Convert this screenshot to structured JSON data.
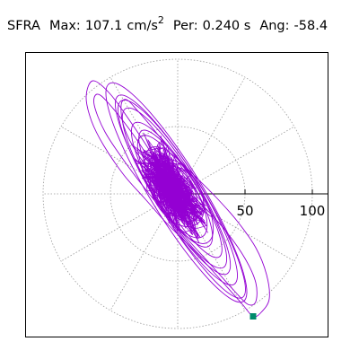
{
  "header": {
    "station": "SFRA",
    "max_label": "Max:",
    "max_value": "107.1",
    "max_unit": "cm/s",
    "max_unit_exp": "2",
    "per_label": "Per:",
    "per_value": "0.240 s",
    "ang_label": "Ang:",
    "ang_value": "-58.4"
  },
  "colors": {
    "trace": "#9400d3",
    "marker": "#008b6b",
    "grid": "#9a9a9a",
    "axis": "#000000"
  },
  "chart_data": {
    "type": "scatter",
    "subtype": "polar-orbit",
    "title": "SFRA Max: 107.1 cm/s2 Per: 0.240 s Ang: -58.4",
    "xlabel": "",
    "ylabel": "",
    "radial_ticks": [
      "50",
      "100"
    ],
    "rings": [
      50,
      100
    ],
    "spokes_deg": [
      0,
      30,
      60,
      90,
      120,
      150,
      180,
      210,
      240,
      270,
      300,
      330
    ],
    "grid": true,
    "max": 107.1,
    "max_angle_deg": -58.4,
    "peak_point": [
      56,
      -91
    ],
    "series": [
      {
        "type": "loop",
        "points": [
          [
            -0.5,
            2
          ],
          [
            -4,
            8
          ],
          [
            -12,
            18
          ],
          [
            -22,
            34
          ],
          [
            -34,
            52
          ],
          [
            -50,
            74
          ],
          [
            -63,
            84
          ],
          [
            -68,
            72
          ],
          [
            -64,
            54
          ],
          [
            -55,
            36
          ],
          [
            -40,
            14
          ],
          [
            -24,
            -4
          ],
          [
            -8,
            -22
          ],
          [
            12,
            -42
          ],
          [
            32,
            -64
          ],
          [
            48,
            -82
          ],
          [
            56,
            -91
          ],
          [
            62,
            -88
          ],
          [
            68,
            -78
          ],
          [
            66,
            -60
          ],
          [
            58,
            -40
          ],
          [
            44,
            -20
          ],
          [
            28,
            -2
          ],
          [
            10,
            16
          ],
          [
            -5,
            32
          ],
          [
            -18,
            48
          ],
          [
            -30,
            62
          ],
          [
            -38,
            70
          ],
          [
            -42,
            66
          ],
          [
            -40,
            50
          ],
          [
            -30,
            30
          ],
          [
            -14,
            10
          ],
          [
            0,
            -4
          ]
        ]
      },
      {
        "type": "loop",
        "points": [
          [
            -4,
            0
          ],
          [
            -16,
            18
          ],
          [
            -33,
            44
          ],
          [
            -52,
            68
          ],
          [
            -60,
            74
          ],
          [
            -62,
            66
          ],
          [
            -54,
            46
          ],
          [
            -38,
            22
          ],
          [
            -18,
            -4
          ],
          [
            4,
            -30
          ],
          [
            24,
            -52
          ],
          [
            42,
            -72
          ],
          [
            52,
            -82
          ],
          [
            58,
            -80
          ],
          [
            58,
            -66
          ],
          [
            50,
            -48
          ],
          [
            36,
            -28
          ],
          [
            18,
            -8
          ],
          [
            2,
            6
          ]
        ]
      },
      {
        "type": "ellipse",
        "rotation_deg": -58.4,
        "steps": 22,
        "radii": [
          [
            95,
            19
          ],
          [
            88,
            17
          ],
          [
            80,
            17
          ],
          [
            72,
            16
          ],
          [
            63,
            15
          ],
          [
            55,
            13
          ],
          [
            48,
            14
          ],
          [
            41,
            16
          ],
          [
            35,
            14
          ],
          [
            28,
            17
          ],
          [
            22,
            15
          ],
          [
            17,
            13
          ],
          [
            12,
            11
          ],
          [
            9,
            8
          ]
        ],
        "dx": [
          -1,
          2,
          0,
          -1,
          1,
          2,
          -2,
          1,
          0,
          -1,
          2,
          0,
          -2,
          1
        ],
        "dy": [
          1,
          -2,
          1,
          2,
          -1,
          0,
          2,
          -1,
          -2,
          1,
          0,
          -1,
          2,
          -1
        ]
      },
      {
        "type": "scatter-walk",
        "center": [
          -4,
          4
        ],
        "steps": 620,
        "spread_major": 30,
        "spread_minor": 12,
        "rotation_deg": -58.4,
        "seed": 17
      }
    ]
  }
}
